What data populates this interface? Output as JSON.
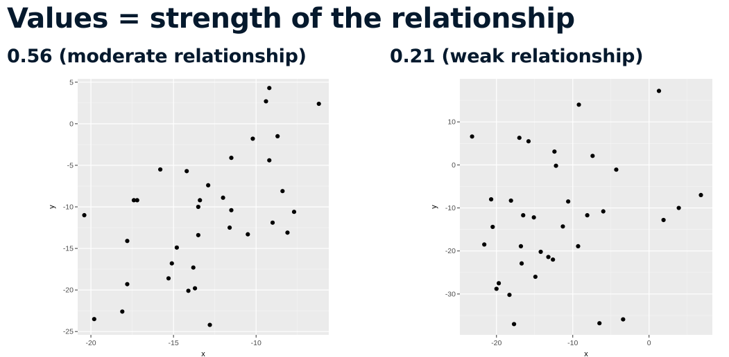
{
  "slide": {
    "title": "Values = strength of the relationship"
  },
  "chart_data": [
    {
      "type": "scatter",
      "title": "0.56 (moderate relationship)",
      "xlabel": "x",
      "ylabel": "y",
      "xlim": [
        -20.8,
        -5.6
      ],
      "ylim": [
        -25.4,
        5.4
      ],
      "xticks": [
        -20,
        -15,
        -10
      ],
      "yticks": [
        5,
        0,
        -5,
        -10,
        -15,
        -20,
        -25
      ],
      "grid": true,
      "background": "#ebebeb",
      "points": [
        [
          -20.4,
          -11.0
        ],
        [
          -19.8,
          -23.5
        ],
        [
          -18.1,
          -22.6
        ],
        [
          -17.8,
          -14.1
        ],
        [
          -17.8,
          -19.3
        ],
        [
          -17.4,
          -9.2
        ],
        [
          -17.2,
          -9.2
        ],
        [
          -15.8,
          -5.5
        ],
        [
          -15.3,
          -18.6
        ],
        [
          -15.1,
          -16.8
        ],
        [
          -14.8,
          -14.9
        ],
        [
          -14.2,
          -5.7
        ],
        [
          -14.1,
          -20.1
        ],
        [
          -13.8,
          -17.3
        ],
        [
          -13.7,
          -19.8
        ],
        [
          -13.5,
          -10.0
        ],
        [
          -13.5,
          -13.4
        ],
        [
          -13.4,
          -9.2
        ],
        [
          -12.9,
          -7.4
        ],
        [
          -12.8,
          -24.2
        ],
        [
          -12.0,
          -8.9
        ],
        [
          -11.6,
          -12.5
        ],
        [
          -11.5,
          -10.4
        ],
        [
          -11.5,
          -4.1
        ],
        [
          -10.5,
          -13.3
        ],
        [
          -10.2,
          -1.8
        ],
        [
          -9.4,
          2.7
        ],
        [
          -9.2,
          4.3
        ],
        [
          -9.2,
          -4.4
        ],
        [
          -9.0,
          -11.9
        ],
        [
          -8.7,
          -1.5
        ],
        [
          -8.4,
          -8.1
        ],
        [
          -8.1,
          -13.1
        ],
        [
          -7.7,
          -10.6
        ],
        [
          -6.2,
          2.4
        ]
      ]
    },
    {
      "type": "scatter",
      "title": "0.21 (weak relationship)",
      "xlabel": "x",
      "ylabel": "y",
      "xlim": [
        -24.8,
        8.3
      ],
      "ylim": [
        -39.5,
        20.0
      ],
      "xticks": [
        -20,
        -10,
        0
      ],
      "yticks": [
        10,
        0,
        -10,
        -20,
        -30
      ],
      "grid": true,
      "background": "#ebebeb",
      "points": [
        [
          -23.2,
          6.6
        ],
        [
          -21.6,
          -18.5
        ],
        [
          -20.7,
          -8.0
        ],
        [
          -20.5,
          -14.4
        ],
        [
          -20.0,
          -28.8
        ],
        [
          -19.7,
          -27.5
        ],
        [
          -18.3,
          -30.2
        ],
        [
          -18.1,
          -8.3
        ],
        [
          -17.7,
          -37.0
        ],
        [
          -17.0,
          6.3
        ],
        [
          -16.8,
          -18.9
        ],
        [
          -16.7,
          -22.9
        ],
        [
          -16.5,
          -11.7
        ],
        [
          -15.8,
          5.5
        ],
        [
          -15.1,
          -12.2
        ],
        [
          -14.9,
          -26.0
        ],
        [
          -14.2,
          -20.2
        ],
        [
          -13.2,
          -21.4
        ],
        [
          -12.6,
          -22.0
        ],
        [
          -12.4,
          3.1
        ],
        [
          -12.2,
          -0.2
        ],
        [
          -11.3,
          -14.3
        ],
        [
          -10.6,
          -8.5
        ],
        [
          -9.3,
          -18.9
        ],
        [
          -9.2,
          14.0
        ],
        [
          -8.1,
          -11.7
        ],
        [
          -7.4,
          2.1
        ],
        [
          -6.5,
          -36.8
        ],
        [
          -6.0,
          -10.8
        ],
        [
          -4.3,
          -1.1
        ],
        [
          -3.4,
          -35.9
        ],
        [
          1.3,
          17.2
        ],
        [
          1.9,
          -12.8
        ],
        [
          3.9,
          -10.0
        ],
        [
          6.8,
          -7.0
        ]
      ]
    }
  ]
}
